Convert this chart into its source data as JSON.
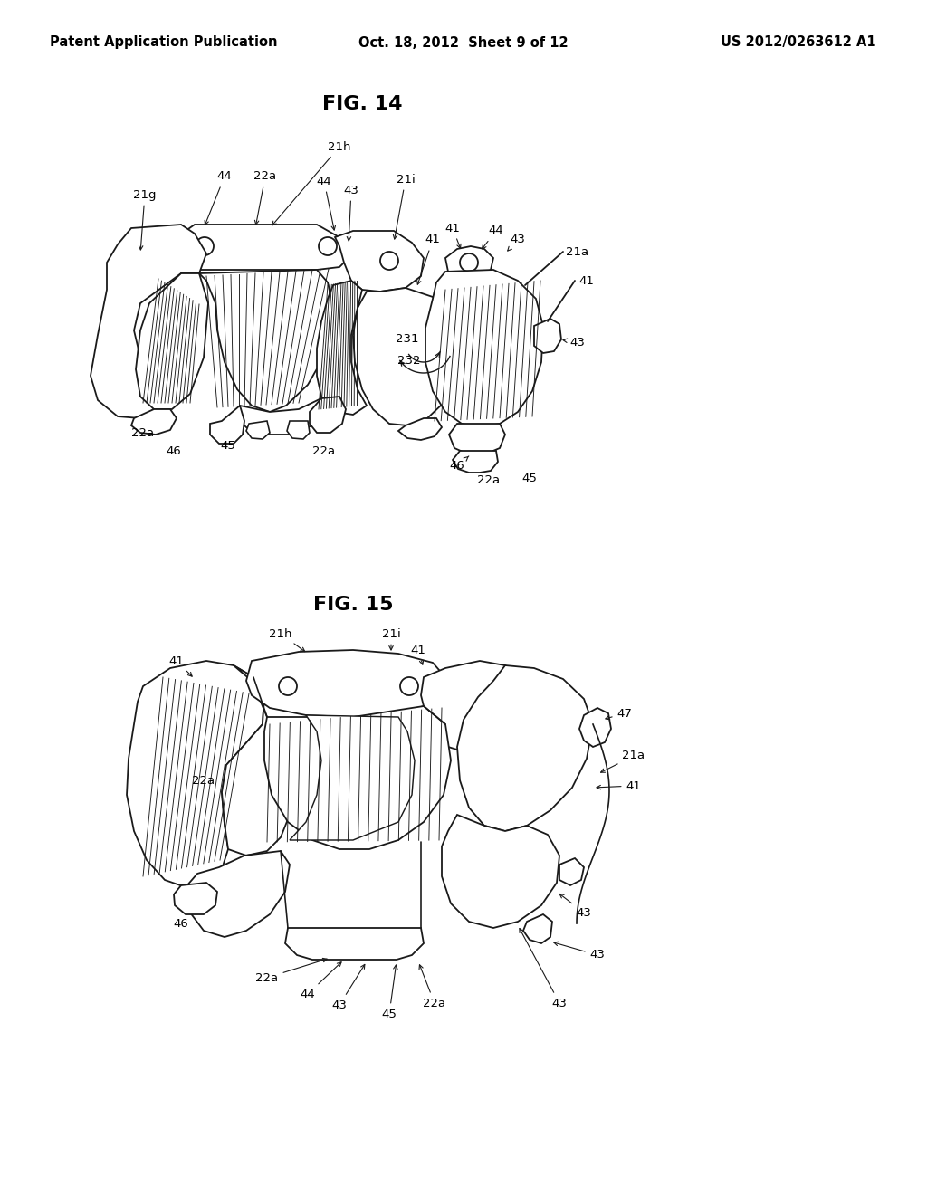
{
  "background_color": "#ffffff",
  "page_header": {
    "left": "Patent Application Publication",
    "center": "Oct. 18, 2012  Sheet 9 of 12",
    "right": "US 2012/0263612 A1",
    "fontsize": 10.5
  },
  "fig14_title": "FIG. 14",
  "fig15_title": "FIG. 15",
  "title_fontsize": 16,
  "anno_fontsize": 9.5,
  "line_color": "#1a1a1a",
  "line_width": 1.3,
  "hatch_lw": 0.65
}
